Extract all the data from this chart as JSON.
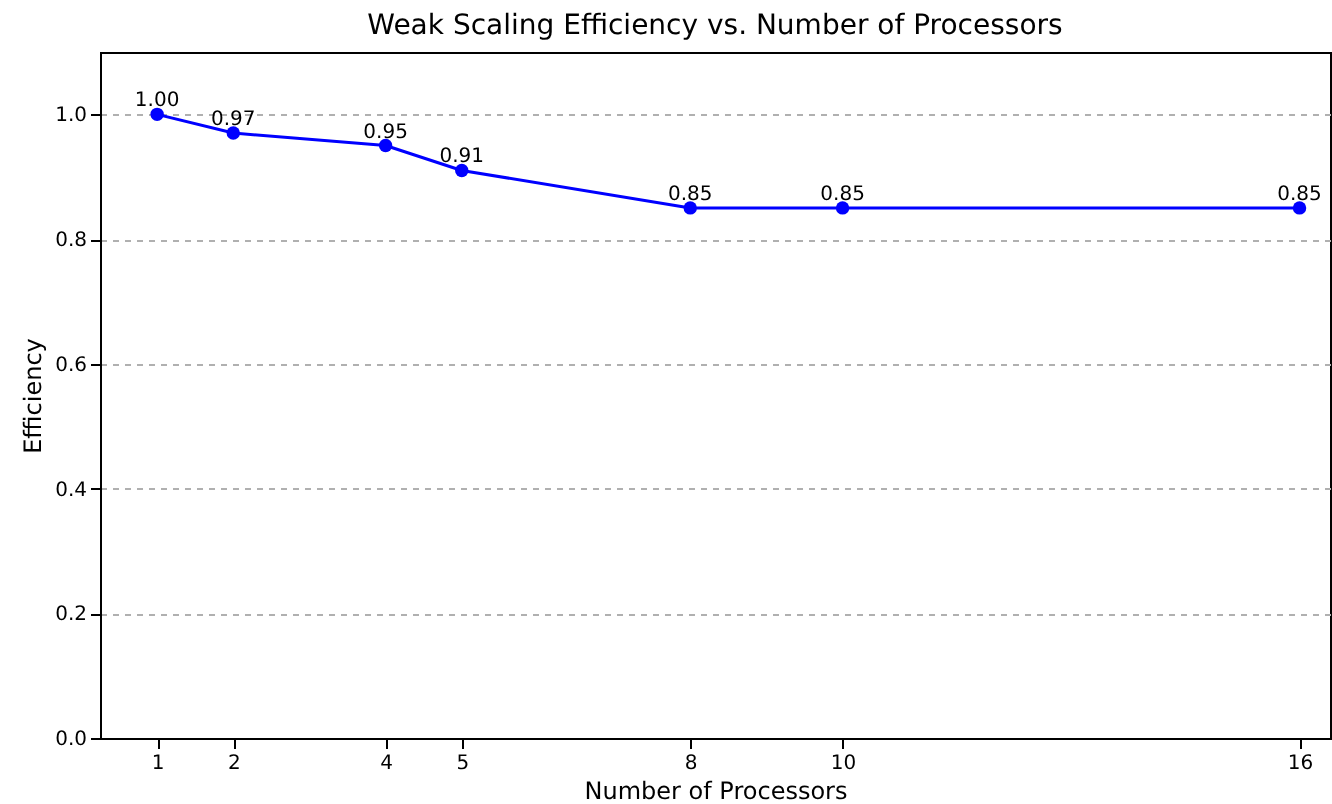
{
  "chart_data": {
    "type": "line",
    "title": "Weak Scaling Efficiency vs. Number of Processors",
    "xlabel": "Number of Processors",
    "ylabel": "Efficiency",
    "x": [
      1,
      2,
      4,
      5,
      8,
      10,
      16
    ],
    "series": [
      {
        "color": "#0000ff",
        "values": [
          1.0,
          0.97,
          0.95,
          0.91,
          0.85,
          0.85,
          0.85
        ],
        "value_labels": [
          "1.00",
          "0.97",
          "0.95",
          "0.91",
          "0.85",
          "0.85",
          "0.85"
        ]
      }
    ],
    "xlim": [
      0.25,
      16.4
    ],
    "xticks": [
      1,
      2,
      4,
      5,
      8,
      10,
      16
    ],
    "ylim": [
      0,
      1.1
    ],
    "yticks": [
      {
        "value": 0,
        "label": "0.0"
      },
      0.2,
      0.4,
      0.6,
      0.8,
      {
        "value": 1,
        "label": "1.0"
      }
    ],
    "grid": "y",
    "marker": "circle",
    "line_style": "solid"
  }
}
